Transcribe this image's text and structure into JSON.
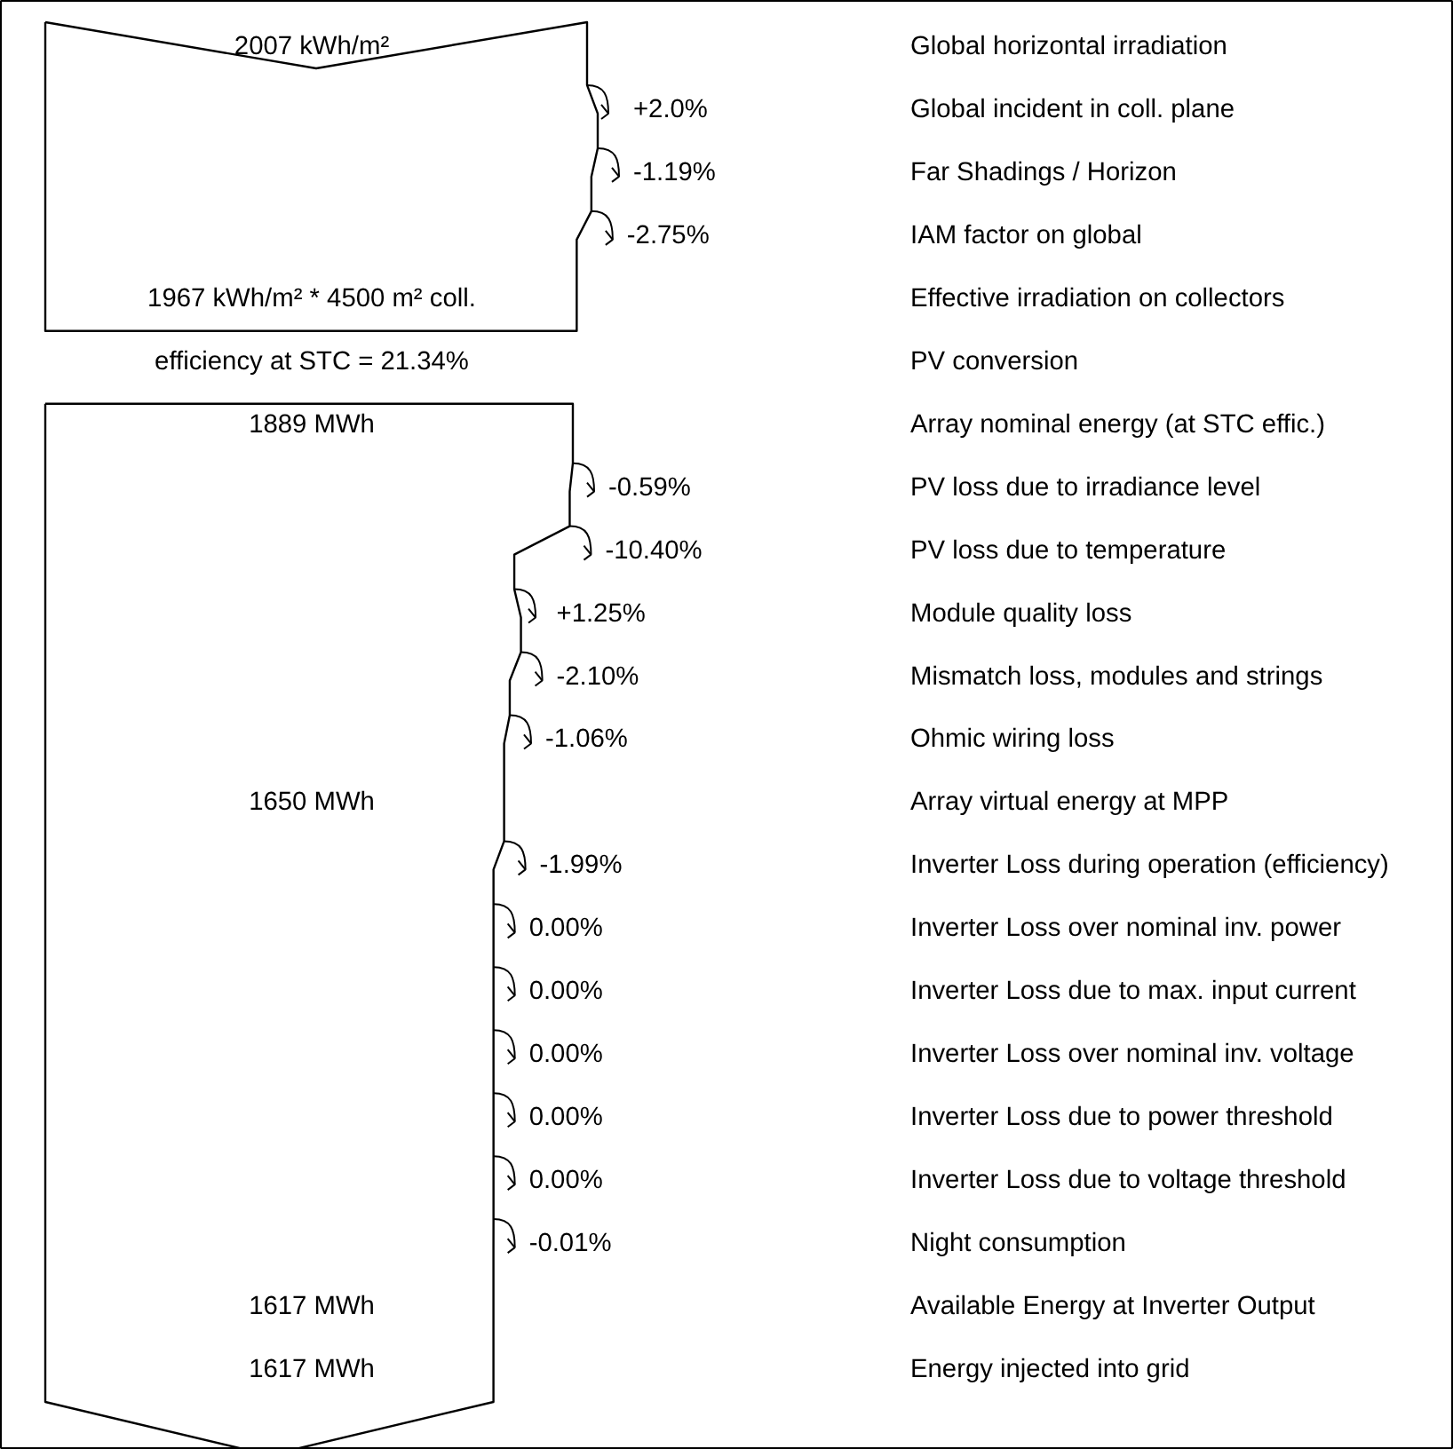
{
  "chart_data": {
    "type": "other",
    "categories": [
      "Global horizontal irradiation",
      "Global incident in coll. plane",
      "Far Shadings / Horizon",
      "IAM factor on global",
      "Effective irradiation on collectors",
      "PV conversion",
      "Array nominal energy (at STC effic.)",
      "PV loss due to irradiance level",
      "PV loss due to temperature",
      "Module quality loss",
      "Mismatch loss, modules and strings",
      "Ohmic wiring loss",
      "Array virtual energy at MPP",
      "Inverter Loss during operation (efficiency)",
      "Inverter Loss over nominal inv. power",
      "Inverter Loss due to max. input current",
      "Inverter Loss over nominal inv. voltage",
      "Inverter Loss due to power threshold",
      "Inverter Loss due to voltage threshold",
      "Night consumption",
      "Available Energy at Inverter Output",
      "Energy injected into grid"
    ],
    "values": [
      null,
      2.0,
      -1.19,
      -2.75,
      null,
      null,
      null,
      -0.59,
      -10.4,
      1.25,
      -2.1,
      -1.06,
      null,
      -1.99,
      0.0,
      0.0,
      0.0,
      0.0,
      0.0,
      -0.01,
      null,
      null
    ],
    "value_labels": [
      null,
      "+2.0%",
      "-1.19%",
      "-2.75%",
      null,
      null,
      null,
      "-0.59%",
      "-10.40%",
      "+1.25%",
      "-2.10%",
      "-1.06%",
      null,
      "-1.99%",
      "0.00%",
      "0.00%",
      "0.00%",
      "0.00%",
      "0.00%",
      "-0.01%",
      null,
      null
    ],
    "annotations": [
      {
        "text": "2007 kWh/m²",
        "y": "Global horizontal irradiation"
      },
      {
        "text": "1967 kWh/m² * 4500 m² coll.",
        "y": "Effective irradiation on collectors"
      },
      {
        "text": "efficiency at STC = 21.34%",
        "y": "PV conversion"
      },
      {
        "text": "1889 MWh",
        "y": "Array nominal energy (at STC effic.)"
      },
      {
        "text": "1650 MWh",
        "y": "Array virtual energy at MPP"
      },
      {
        "text": "1617 MWh",
        "y": "Available Energy at Inverter Output"
      },
      {
        "text": "1617 MWh",
        "y": "Energy injected into grid"
      }
    ]
  }
}
